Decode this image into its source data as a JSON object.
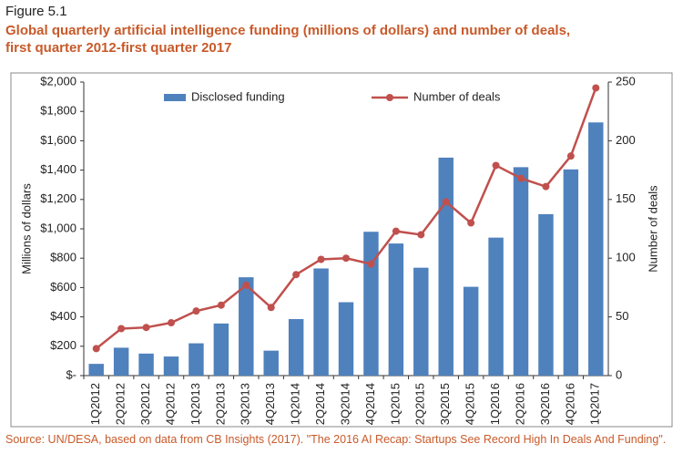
{
  "figure_label": "Figure 5.1",
  "source": "Source: UN/DESA, based on data from CB Insights (2017). \"The 2016 AI Recap: Startups See Record High In Deals And Funding\".",
  "chart_data": {
    "type": "bar_line",
    "title": "Global quarterly artificial intelligence funding (millions of dollars) and number of deals,\nfirst quarter 2012-first quarter 2017",
    "y_label": "Millions of dollars",
    "y2_label": "Number of deals",
    "categories": [
      "1Q2012",
      "2Q2012",
      "3Q2012",
      "4Q2012",
      "1Q2013",
      "2Q2013",
      "3Q2013",
      "4Q2013",
      "1Q2014",
      "2Q2014",
      "3Q2014",
      "4Q2014",
      "1Q2015",
      "2Q2015",
      "3Q2015",
      "4Q2015",
      "1Q2016",
      "2Q2016",
      "3Q2016",
      "4Q2016",
      "1Q2017"
    ],
    "series": [
      {
        "name": "Disclosed funding",
        "type": "bar",
        "color": "#4f81bd",
        "values": [
          80,
          190,
          150,
          130,
          220,
          355,
          670,
          170,
          385,
          730,
          500,
          980,
          900,
          735,
          1485,
          605,
          940,
          1420,
          1100,
          1405,
          1725
        ]
      },
      {
        "name": "Number of deals",
        "type": "line",
        "axis": "y2",
        "color": "#c0504d",
        "values": [
          23,
          40,
          41,
          45,
          55,
          60,
          77,
          58,
          86,
          99,
          100,
          95,
          123,
          120,
          148,
          130,
          179,
          168,
          161,
          187,
          245
        ]
      }
    ],
    "ylim": [
      0,
      2000
    ],
    "yticks": [
      {
        "value": 0,
        "label": "$-"
      },
      {
        "value": 200,
        "label": "$200"
      },
      {
        "value": 400,
        "label": "$400"
      },
      {
        "value": 600,
        "label": "$600"
      },
      {
        "value": 800,
        "label": "$800"
      },
      {
        "value": 1000,
        "label": "$1,000"
      },
      {
        "value": 1200,
        "label": "$1,200"
      },
      {
        "value": 1400,
        "label": "$1,400"
      },
      {
        "value": 1600,
        "label": "$1,600"
      },
      {
        "value": 1800,
        "label": "$1,800"
      },
      {
        "value": 2000,
        "label": "$2,000"
      }
    ],
    "y2lim": [
      0,
      250
    ],
    "y2ticks": [
      0,
      50,
      100,
      150,
      200,
      250
    ],
    "grid": false
  }
}
